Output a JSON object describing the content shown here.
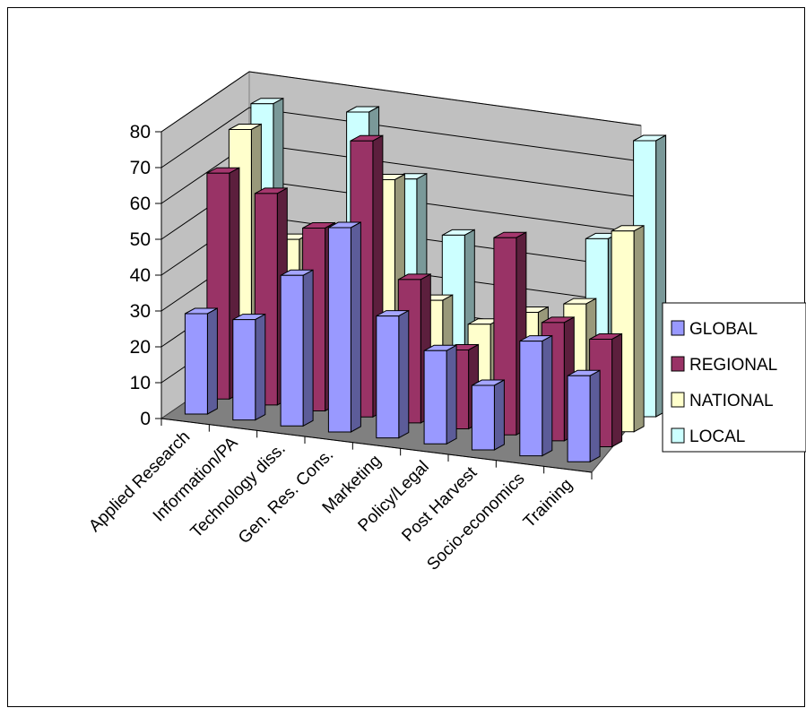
{
  "chart_data": {
    "type": "bar",
    "variant": "3d-clustered-depth",
    "title": "",
    "xlabel": "",
    "ylabel": "",
    "ylim": [
      0,
      80
    ],
    "yticks": [
      0,
      10,
      20,
      30,
      40,
      50,
      60,
      70,
      80
    ],
    "grid": true,
    "legend_position": "right",
    "categories": [
      "Applied Research",
      "Information/PA",
      "Technology diss.",
      "Gen. Res. Cons.",
      "Marketing",
      "Policy/Legal",
      "Post Harvest",
      "Socio-economics",
      "Training"
    ],
    "series": [
      {
        "name": "GLOBAL",
        "color": "#9999ff",
        "values": [
          28,
          28,
          42,
          57,
          34,
          26,
          18,
          32,
          24
        ]
      },
      {
        "name": "REGIONAL",
        "color": "#993366",
        "values": [
          63,
          59,
          51,
          77,
          40,
          22,
          55,
          33,
          30
        ]
      },
      {
        "name": "NATIONAL",
        "color": "#ffffcc",
        "values": [
          71,
          42,
          0,
          62,
          30,
          25,
          30,
          34,
          56
        ]
      },
      {
        "name": "LOCAL",
        "color": "#ccffff",
        "values": [
          74,
          0,
          75,
          58,
          44,
          18,
          0,
          48,
          77
        ]
      }
    ]
  }
}
